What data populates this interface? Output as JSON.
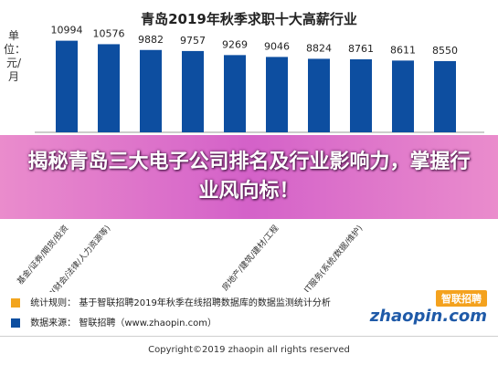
{
  "chart_data": {
    "type": "bar",
    "title": "青岛2019年秋季求职十大高薪行业",
    "ylabel": "单位：元/月",
    "categories": [
      "基金/证券/期货/投资",
      "专业服务/咨询(财会/法律/人力资源等)",
      "",
      "",
      "",
      "房地产/建筑/建材/工程",
      "",
      "IT服务(系统/数据/维护)",
      "",
      ""
    ],
    "values": [
      10994,
      10576,
      9882,
      9757,
      9269,
      9046,
      8824,
      8761,
      8611,
      8550
    ],
    "ylim": [
      0,
      11500
    ],
    "colors": {
      "bar": "#0d4ea0",
      "axis": "#999999"
    }
  },
  "banner": {
    "text": "揭秘青岛三大电子公司排名及行业影响力，掌握行业风向标！"
  },
  "footer": {
    "note_label": "统计规则：",
    "note_text": "基于智联招聘2019年秋季在线招聘数据库的数据监测统计分析",
    "source_label": "数据来源：",
    "source_text": "智联招聘（www.zhaopin.com）",
    "note_color": "#f2a51f",
    "source_color": "#0d4ea0"
  },
  "logo": {
    "cn": "智联招聘",
    "en": "zhaopin.com"
  },
  "copyright": "Copyright©2019 zhaopin all rights reserved"
}
